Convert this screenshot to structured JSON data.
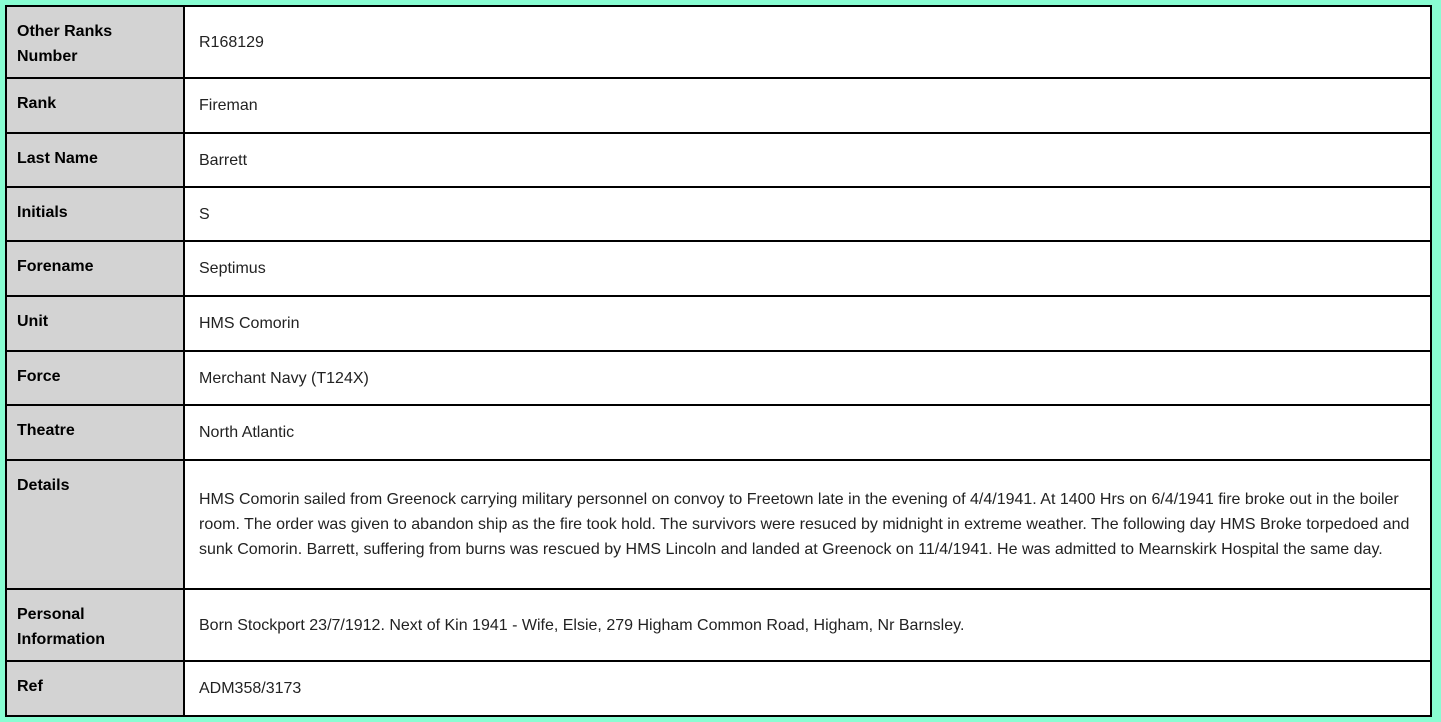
{
  "record": {
    "rows": [
      {
        "label": "Other Ranks Number",
        "value": "R168129"
      },
      {
        "label": "Rank",
        "value": "Fireman"
      },
      {
        "label": "Last Name",
        "value": "Barrett"
      },
      {
        "label": "Initials",
        "value": "S"
      },
      {
        "label": "Forename",
        "value": "Septimus"
      },
      {
        "label": "Unit",
        "value": "HMS Comorin"
      },
      {
        "label": "Force",
        "value": "Merchant Navy (T124X)"
      },
      {
        "label": "Theatre",
        "value": "North Atlantic"
      },
      {
        "label": "Details",
        "value": "HMS Comorin sailed from Greenock carrying military personnel on convoy to Freetown late in the evening of 4/4/1941. At 1400 Hrs on 6/4/1941 fire broke out in the boiler room. The order was given to abandon ship as the fire took hold. The survivors were resuced by midnight in extreme weather. The following day HMS Broke torpedoed and sunk Comorin. Barrett, suffering from burns was rescued by HMS Lincoln and landed at Greenock on 11/4/1941. He was admitted to Mearnskirk Hospital the same day."
      },
      {
        "label": "Personal Information",
        "value": "Born Stockport 23/7/1912. Next of Kin 1941 - Wife, Elsie, 279 Higham Common Road, Higham, Nr Barnsley."
      },
      {
        "label": "Ref",
        "value": "ADM358/3173"
      }
    ]
  }
}
